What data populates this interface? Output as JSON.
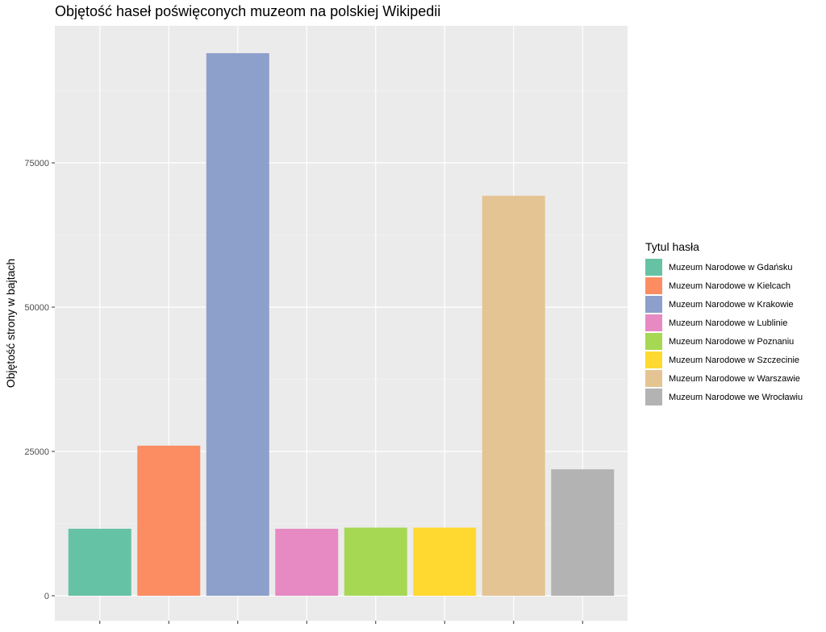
{
  "chart_data": {
    "type": "bar",
    "title": "Objętość haseł poświęconych muzeom na polskiej Wikipedii",
    "xlabel": "",
    "ylabel": "Objętość strony w bajtach",
    "ylim": [
      0,
      98000
    ],
    "yticks": [
      0,
      25000,
      50000,
      75000
    ],
    "grid": true,
    "legend_position": "right",
    "legend_title": "Tytul hasła",
    "categories": [
      "Muzeum Narodowe w Gdańsku",
      "Muzeum Narodowe w Kielcach",
      "Muzeum Narodowe w Krakowie",
      "Muzeum Narodowe w Lublinie",
      "Muzeum Narodowe w Poznaniu",
      "Muzeum Narodowe w Szczecinie",
      "Muzeum Narodowe w Warszawie",
      "Muzeum Narodowe we Wrocławiu"
    ],
    "values": [
      11600,
      26000,
      94000,
      11600,
      11800,
      11800,
      69300,
      21900
    ],
    "colors": [
      "#66c2a5",
      "#fc8d62",
      "#8da0cb",
      "#e78ac3",
      "#a6d854",
      "#ffd92f",
      "#e5c494",
      "#b3b3b3"
    ]
  }
}
